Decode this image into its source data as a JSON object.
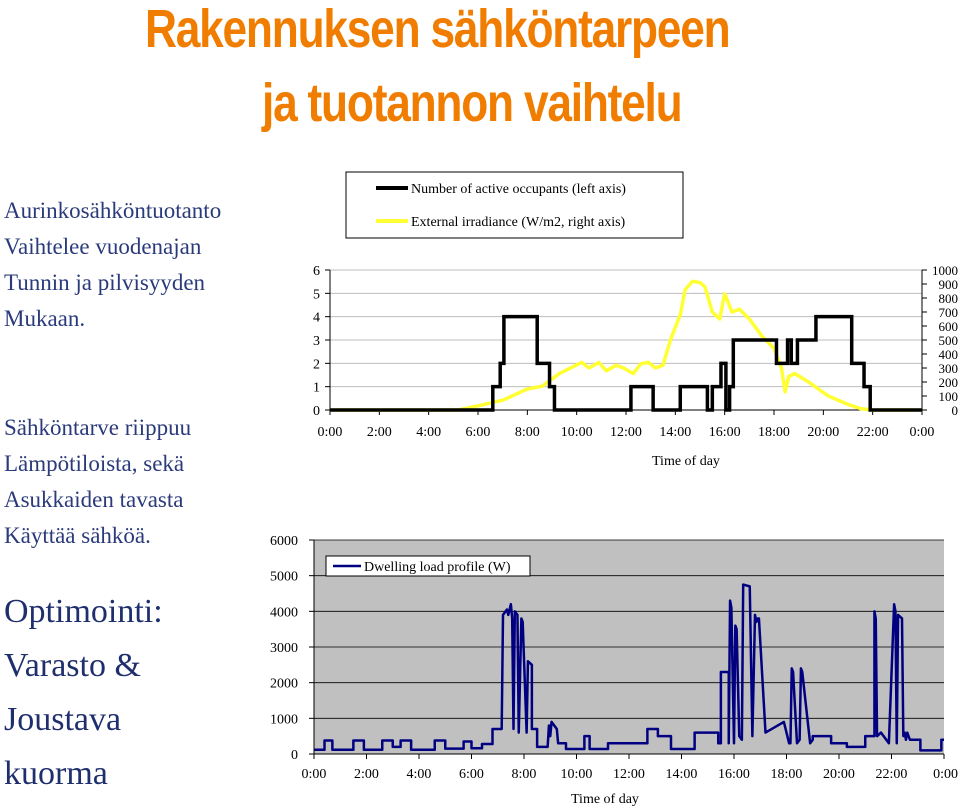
{
  "title": {
    "line1": "Rakennuksen sähköntarpeen",
    "line2": "ja tuotannon vaihtelu"
  },
  "left_block_1": [
    "Aurinkosähköntuotanto",
    "Vaihtelee vuodenajan",
    "Tunnin ja pilvisyyden",
    "Mukaan."
  ],
  "left_block_2": [
    "Sähköntarve riippuu",
    "Lämpötiloista, sekä",
    "Asukkaiden tavasta",
    "Käyttää sähköä."
  ],
  "left_block_3": [
    "Optimointi:",
    "Varasto &",
    "Joustava",
    "kuorma"
  ],
  "colors": {
    "title": "#f07d00",
    "occupants": "#000000",
    "irradiance": "#ffff33",
    "load": "#000080",
    "plot_bg": "#c0c0c0"
  },
  "chart_data": [
    {
      "type": "line",
      "xlabel": "Time of day",
      "x_ticks": [
        "0:00",
        "2:00",
        "4:00",
        "6:00",
        "8:00",
        "10:00",
        "12:00",
        "14:00",
        "16:00",
        "18:00",
        "20:00",
        "22:00",
        "0:00"
      ],
      "y_ticks_left": [
        "0",
        "1",
        "2",
        "3",
        "4",
        "5",
        "6"
      ],
      "y_ticks_right": [
        "0",
        "100",
        "200",
        "300",
        "400",
        "500",
        "600",
        "700",
        "800",
        "900",
        "1000"
      ],
      "ylim_left": [
        0,
        6
      ],
      "ylim_right": [
        0,
        1000
      ],
      "xlim_hours": [
        0,
        24
      ],
      "grid": "horizontal",
      "legend_position": "top",
      "series": [
        {
          "name": "Number of active occupants (left axis)",
          "axis": "left",
          "x_hours": [
            0,
            6.6,
            6.6,
            6.9,
            6.9,
            7.05,
            7.05,
            8.4,
            8.4,
            8.9,
            8.9,
            9.1,
            9.1,
            12.2,
            12.2,
            13.1,
            13.1,
            14.2,
            14.2,
            15.3,
            15.3,
            15.5,
            15.5,
            15.85,
            15.85,
            16.05,
            16.05,
            16.2,
            16.2,
            16.35,
            16.35,
            18.1,
            18.1,
            18.55,
            18.55,
            18.7,
            18.7,
            18.95,
            18.95,
            19.45,
            19.45,
            19.7,
            19.7,
            21.15,
            21.15,
            21.65,
            21.65,
            21.9,
            21.9,
            24
          ],
          "values": [
            0,
            0,
            1,
            1,
            2,
            2,
            4,
            4,
            2,
            2,
            1,
            1,
            0,
            0,
            1,
            1,
            0,
            0,
            1,
            1,
            0,
            0,
            1,
            1,
            2,
            2,
            0,
            0,
            1,
            1,
            3,
            3,
            2,
            2,
            3,
            3,
            2,
            2,
            3,
            3,
            3,
            3,
            4,
            4,
            2,
            2,
            1,
            1,
            0,
            0
          ]
        },
        {
          "name": "External irradiance (W/m2, right axis)",
          "axis": "right",
          "x_hours": [
            0,
            5.2,
            6.0,
            7.0,
            8.0,
            8.6,
            9.3,
            10.2,
            10.5,
            10.9,
            11.2,
            11.6,
            11.9,
            12.3,
            12.6,
            12.9,
            13.2,
            13.5,
            13.8,
            14.2,
            14.4,
            14.7,
            15.0,
            15.2,
            15.5,
            15.8,
            16.0,
            16.3,
            16.6,
            17.0,
            17.5,
            18.0,
            18.3,
            18.45,
            18.6,
            18.85,
            19.4,
            20.2,
            21.0,
            21.5,
            22.0,
            24
          ],
          "values": [
            0,
            0,
            30,
            70,
            150,
            170,
            260,
            340,
            300,
            340,
            280,
            320,
            300,
            260,
            330,
            340,
            300,
            320,
            500,
            680,
            860,
            920,
            910,
            880,
            700,
            650,
            830,
            700,
            720,
            650,
            530,
            440,
            300,
            130,
            240,
            260,
            200,
            100,
            40,
            10,
            0,
            0
          ]
        }
      ]
    },
    {
      "type": "line",
      "xlabel": "Time of day",
      "x_ticks": [
        "0:00",
        "2:00",
        "4:00",
        "6:00",
        "8:00",
        "10:00",
        "12:00",
        "14:00",
        "16:00",
        "18:00",
        "20:00",
        "22:00",
        "0:00"
      ],
      "y_ticks": [
        "0",
        "1000",
        "2000",
        "3000",
        "4000",
        "5000",
        "6000"
      ],
      "ylim": [
        0,
        6000
      ],
      "xlim_hours": [
        0,
        24
      ],
      "grid": "horizontal",
      "legend_position": "top-left",
      "series": [
        {
          "name": "Dwelling load profile (W)",
          "x_hours": [
            0,
            0.4,
            0.4,
            0.7,
            0.7,
            1.5,
            1.5,
            1.9,
            1.9,
            2.6,
            2.6,
            3.0,
            3.0,
            3.3,
            3.3,
            3.7,
            3.7,
            4.6,
            4.6,
            5.0,
            5.0,
            5.7,
            5.7,
            6.0,
            6.0,
            6.4,
            6.4,
            6.8,
            6.8,
            7.15,
            7.2,
            7.35,
            7.4,
            7.5,
            7.55,
            7.6,
            7.65,
            7.75,
            7.8,
            7.9,
            7.95,
            8.1,
            8.15,
            8.3,
            8.3,
            8.5,
            8.5,
            8.9,
            8.95,
            9.0,
            9.05,
            9.25,
            9.3,
            9.6,
            9.6,
            10.3,
            10.3,
            10.5,
            10.5,
            11.2,
            11.2,
            12.7,
            12.7,
            13.1,
            13.1,
            13.6,
            13.6,
            14.5,
            14.5,
            15.4,
            15.4,
            15.5,
            15.5,
            15.8,
            15.8,
            15.85,
            15.9,
            16.0,
            16.05,
            16.1,
            16.2,
            16.3,
            16.35,
            16.6,
            16.7,
            16.8,
            16.85,
            16.9,
            16.95,
            17.2,
            17.2,
            17.9,
            17.9,
            18.1,
            18.15,
            18.2,
            18.25,
            18.4,
            18.5,
            18.55,
            18.6,
            18.9,
            18.9,
            19.0,
            19.0,
            19.7,
            19.7,
            20.3,
            20.3,
            21.0,
            21.0,
            21.35,
            21.35,
            21.4,
            21.45,
            21.6,
            21.6,
            21.9,
            21.9,
            22.1,
            22.15,
            22.2,
            22.25,
            22.4,
            22.45,
            22.5,
            22.55,
            22.6,
            22.7,
            23.1,
            23.1,
            23.9,
            23.9,
            24
          ],
          "values": [
            120,
            120,
            380,
            380,
            120,
            120,
            380,
            380,
            120,
            120,
            380,
            380,
            200,
            200,
            380,
            380,
            120,
            120,
            380,
            380,
            150,
            150,
            350,
            350,
            160,
            160,
            280,
            280,
            700,
            700,
            3900,
            4050,
            3900,
            4200,
            3800,
            700,
            4000,
            3900,
            600,
            3800,
            3700,
            600,
            2600,
            2500,
            700,
            700,
            200,
            200,
            800,
            500,
            900,
            700,
            300,
            300,
            140,
            140,
            500,
            500,
            140,
            140,
            300,
            300,
            700,
            700,
            500,
            500,
            140,
            140,
            600,
            600,
            300,
            300,
            2300,
            2300,
            300,
            4300,
            4100,
            300,
            3600,
            3500,
            500,
            400,
            4750,
            4700,
            500,
            3900,
            3700,
            3800,
            3800,
            600,
            600,
            900,
            900,
            300,
            300,
            2400,
            2300,
            300,
            400,
            2400,
            2300,
            300,
            300,
            400,
            500,
            500,
            300,
            300,
            200,
            200,
            500,
            500,
            4000,
            3800,
            500,
            600,
            600,
            300,
            300,
            4200,
            4000,
            300,
            3900,
            3800,
            500,
            600,
            400,
            600,
            400,
            400,
            100,
            100,
            400,
            400
          ]
        }
      ]
    }
  ]
}
